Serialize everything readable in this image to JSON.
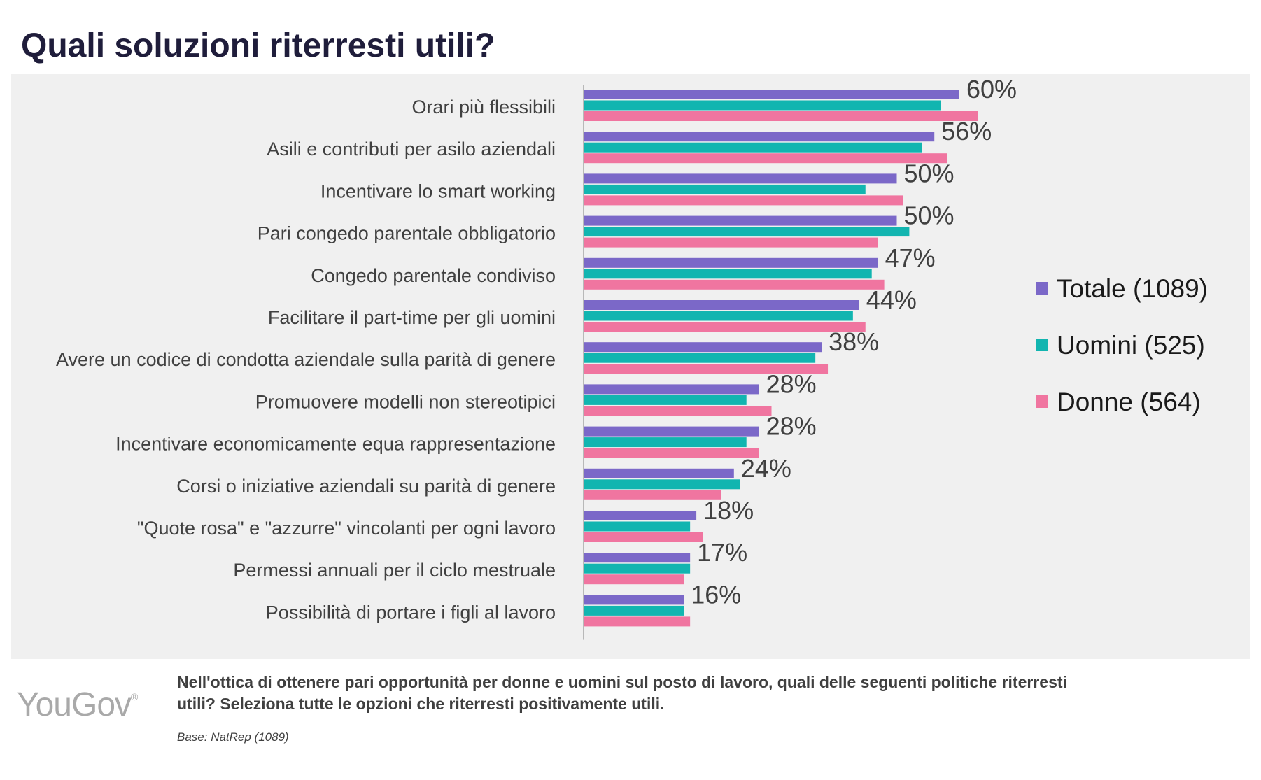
{
  "title": "Quali soluzioni riterresti utili?",
  "footer": {
    "logo_text": "YouGov",
    "logo_mark": "®",
    "question": "Nell'ottica di ottenere pari opportunità per donne e uomini sul posto di lavoro, quali delle seguenti politiche riterresti utili? Seleziona tutte le opzioni che riterresti positivamente utili.",
    "base": "Base: NatRep (1089)"
  },
  "chart_data": {
    "type": "bar",
    "orientation": "horizontal",
    "categories": [
      "Orari più flessibili",
      "Asili e contributi per asilo aziendali",
      "Incentivare lo smart working",
      "Pari congedo parentale obbligatorio",
      "Congedo parentale condiviso",
      "Facilitare il part-time per gli uomini",
      "Avere un codice di condotta aziendale sulla parità di genere",
      "Promuovere modelli non stereotipici",
      "Incentivare economicamente equa rappresentazione",
      "Corsi o iniziative aziendali su parità di genere",
      "\"Quote rosa\" e \"azzurre\" vincolanti per ogni lavoro",
      "Permessi annuali per il ciclo mestruale",
      "Possibilità di portare i figli al lavoro"
    ],
    "series": [
      {
        "name": "Totale (1089)",
        "color": "#7b68c8",
        "values": [
          60,
          56,
          50,
          50,
          47,
          44,
          38,
          28,
          28,
          24,
          18,
          17,
          16
        ]
      },
      {
        "name": "Uomini (525)",
        "color": "#12b5b0",
        "values": [
          57,
          54,
          45,
          52,
          46,
          43,
          37,
          26,
          26,
          25,
          17,
          17,
          16
        ]
      },
      {
        "name": "Donne (564)",
        "color": "#f075a0",
        "values": [
          63,
          58,
          51,
          47,
          48,
          45,
          39,
          30,
          28,
          22,
          19,
          16,
          17
        ]
      }
    ],
    "value_labels": [
      "60%",
      "56%",
      "50%",
      "50%",
      "47%",
      "44%",
      "38%",
      "28%",
      "28%",
      "24%",
      "18%",
      "17%",
      "16%"
    ],
    "xlim": [
      0,
      100
    ],
    "grid": false,
    "legend_position": "right"
  }
}
